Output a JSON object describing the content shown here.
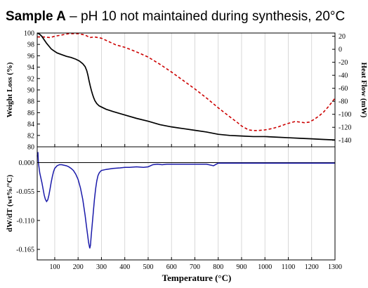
{
  "title": {
    "bold": "Sample A",
    "rest": " – pH 10 not maintained during synthesis, 20°C"
  },
  "colors": {
    "weight_line": "#000000",
    "heatflow_line": "#cc0000",
    "dtg_line": "#1a1aaa",
    "grid": "#cfcfcf",
    "axis": "#000000",
    "zero_line": "#000000"
  },
  "chart_data": [
    {
      "type": "line",
      "panel": "top",
      "x_ticks": [
        100,
        200,
        300,
        400,
        500,
        600,
        700,
        800,
        900,
        1000,
        1100,
        1200,
        1300
      ],
      "xlim": [
        25,
        1300
      ],
      "y_left_label": "Weight Loss (%)",
      "y_left_ticks": [
        "100",
        "98",
        "96",
        "94",
        "92",
        "90",
        "88",
        "86",
        "84",
        "82",
        "80"
      ],
      "y_left_lim": [
        80,
        100
      ],
      "y_right_label": "Heat Flow (mW)",
      "y_right_ticks": [
        "20",
        "0",
        "-20",
        "-40",
        "-60",
        "-80",
        "-100",
        "-120",
        "-140"
      ],
      "y_right_lim": [
        -150,
        25
      ],
      "grid": "vertical",
      "series": [
        {
          "key": "weight",
          "axis": "left",
          "style": "solid",
          "x": [
            25,
            35,
            45,
            55,
            65,
            75,
            85,
            95,
            110,
            130,
            150,
            170,
            190,
            205,
            220,
            230,
            237,
            242,
            247,
            252,
            257,
            262,
            267,
            272,
            280,
            290,
            300,
            320,
            350,
            400,
            450,
            500,
            550,
            600,
            650,
            700,
            750,
            800,
            850,
            900,
            950,
            1000,
            1050,
            1100,
            1150,
            1200,
            1250,
            1300
          ],
          "y": [
            100,
            99.8,
            99.4,
            98.8,
            98.2,
            97.7,
            97.2,
            96.9,
            96.5,
            96.2,
            95.9,
            95.7,
            95.4,
            95.1,
            94.6,
            94.1,
            93.4,
            92.6,
            91.6,
            90.7,
            89.9,
            89.2,
            88.6,
            88.1,
            87.6,
            87.2,
            87.0,
            86.6,
            86.2,
            85.6,
            85.0,
            84.5,
            83.9,
            83.5,
            83.2,
            82.9,
            82.6,
            82.2,
            82.0,
            81.9,
            81.8,
            81.8,
            81.7,
            81.6,
            81.5,
            81.4,
            81.3,
            81.2
          ]
        },
        {
          "key": "heat_flow",
          "axis": "right",
          "style": "dashed",
          "x": [
            25,
            50,
            80,
            100,
            130,
            160,
            200,
            230,
            250,
            270,
            300,
            330,
            360,
            400,
            450,
            500,
            550,
            600,
            650,
            700,
            750,
            800,
            850,
            880,
            900,
            930,
            950,
            970,
            1000,
            1030,
            1060,
            1090,
            1110,
            1130,
            1150,
            1170,
            1190,
            1210,
            1230,
            1250,
            1270,
            1290,
            1300
          ],
          "y": [
            19,
            19,
            18,
            20,
            22,
            24,
            24,
            22,
            18,
            19,
            17,
            12,
            7,
            3,
            -4,
            -12,
            -23,
            -35,
            -48,
            -61,
            -75,
            -90,
            -104,
            -112,
            -118,
            -124,
            -125,
            -125,
            -124,
            -122,
            -119,
            -115,
            -113,
            -111,
            -112,
            -113,
            -112,
            -108,
            -103,
            -97,
            -89,
            -80,
            -75
          ]
        }
      ]
    },
    {
      "type": "line",
      "panel": "bottom",
      "x_label": "Temperature (°C)",
      "x_ticks": [
        100,
        200,
        300,
        400,
        500,
        600,
        700,
        800,
        900,
        1000,
        1100,
        1200,
        1300
      ],
      "xlim": [
        25,
        1300
      ],
      "y_label": "dW/dT (wt%/°C)",
      "y_ticks": [
        "0.000",
        "-0.055",
        "-0.110",
        "-0.165"
      ],
      "ylim": [
        -0.185,
        0.03
      ],
      "grid": "vertical",
      "zero_line": true,
      "series": [
        {
          "key": "dtg",
          "style": "solid",
          "x": [
            25,
            28,
            30,
            33,
            36,
            40,
            45,
            50,
            55,
            60,
            65,
            70,
            75,
            80,
            85,
            90,
            95,
            100,
            110,
            120,
            130,
            140,
            150,
            160,
            170,
            180,
            190,
            200,
            210,
            220,
            225,
            230,
            235,
            240,
            245,
            250,
            253,
            256,
            260,
            265,
            270,
            275,
            280,
            285,
            290,
            295,
            300,
            320,
            350,
            380,
            400,
            420,
            450,
            480,
            500,
            520,
            540,
            560,
            580,
            600,
            650,
            700,
            750,
            780,
            800,
            820,
            850,
            900,
            950,
            1000,
            1050,
            1100,
            1150,
            1200,
            1250,
            1300
          ],
          "y": [
            0.012,
            0.02,
            0.0,
            -0.01,
            -0.02,
            -0.028,
            -0.038,
            -0.05,
            -0.062,
            -0.07,
            -0.074,
            -0.071,
            -0.062,
            -0.05,
            -0.037,
            -0.026,
            -0.017,
            -0.011,
            -0.006,
            -0.004,
            -0.004,
            -0.005,
            -0.006,
            -0.008,
            -0.011,
            -0.015,
            -0.022,
            -0.032,
            -0.048,
            -0.07,
            -0.085,
            -0.1,
            -0.118,
            -0.135,
            -0.152,
            -0.163,
            -0.157,
            -0.14,
            -0.12,
            -0.095,
            -0.07,
            -0.05,
            -0.035,
            -0.025,
            -0.02,
            -0.017,
            -0.015,
            -0.013,
            -0.011,
            -0.01,
            -0.009,
            -0.009,
            -0.008,
            -0.009,
            -0.008,
            -0.004,
            -0.003,
            -0.004,
            -0.003,
            -0.003,
            -0.003,
            -0.003,
            -0.003,
            -0.006,
            -0.001,
            -0.001,
            -0.001,
            -0.001,
            -0.001,
            -0.001,
            -0.001,
            -0.001,
            -0.001,
            -0.001,
            -0.001,
            -0.001
          ]
        }
      ]
    }
  ]
}
